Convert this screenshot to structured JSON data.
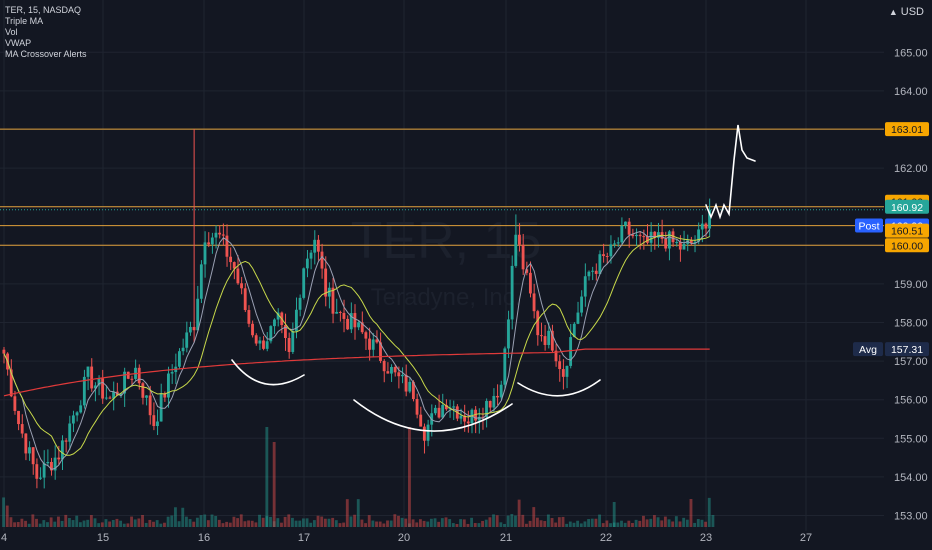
{
  "header": {
    "symbol_line": "TER, 15, NASDAQ",
    "indicators": [
      "Triple MA",
      "Vol",
      "VWAP",
      "MA Crossover Alerts"
    ]
  },
  "currency": {
    "label": "USD",
    "caret": "▲"
  },
  "watermark": {
    "ticker": "TER, 15",
    "name": "Teradyne, Inc."
  },
  "chart_data": {
    "type": "candlestick",
    "symbol": "TER",
    "interval": "15",
    "exchange": "NASDAQ",
    "y_axis": {
      "ticks": [
        153,
        154,
        155,
        156,
        157,
        158,
        159,
        160,
        161,
        162,
        163,
        164,
        165
      ],
      "tick_labels": [
        "153.00",
        "154.00",
        "155.00",
        "156.00",
        "157.00",
        "158.00",
        "159.00",
        "160.00",
        "161.00",
        "162.00",
        "163.00",
        "164.00",
        "165.00"
      ],
      "range": [
        152.75,
        166.2
      ]
    },
    "x_axis": {
      "labels": [
        {
          "label": "4",
          "day": 14
        },
        {
          "label": "15",
          "day": 15
        },
        {
          "label": "16",
          "day": 16
        },
        {
          "label": "17",
          "day": 17
        },
        {
          "label": "20",
          "day": 20
        },
        {
          "label": "21",
          "day": 21
        },
        {
          "label": "22",
          "day": 22
        },
        {
          "label": "23",
          "day": 23
        },
        {
          "label": "27",
          "day": 27
        }
      ]
    },
    "price_tags": [
      {
        "label": "163.01",
        "value": 163.01,
        "kind": "level"
      },
      {
        "label": "161.00",
        "value": 161.0,
        "kind": "level"
      },
      {
        "label": "160.92",
        "value": 160.92,
        "kind": "last"
      },
      {
        "label": "160.90",
        "value": 160.9,
        "kind": "post",
        "prefix": "Post"
      },
      {
        "label": "160.51",
        "value": 160.51,
        "kind": "level"
      },
      {
        "label": "160.00",
        "value": 160.0,
        "kind": "level"
      },
      {
        "label": "157.31",
        "value": 157.31,
        "kind": "avg",
        "prefix": "Avg"
      }
    ],
    "horizontal_lines": [
      163.01,
      161.0,
      160.51,
      160.0
    ],
    "anchors": [
      {
        "t": 0,
        "p": 157.2
      },
      {
        "t": 4,
        "p": 155.4
      },
      {
        "t": 9,
        "p": 154.0
      },
      {
        "t": 15,
        "p": 154.6
      },
      {
        "t": 23,
        "p": 156.6
      },
      {
        "t": 29,
        "p": 156.0
      },
      {
        "t": 36,
        "p": 156.8
      },
      {
        "t": 41,
        "p": 155.4
      },
      {
        "t": 47,
        "p": 157.0
      },
      {
        "t": 52,
        "p": 158.0
      },
      {
        "t": 55,
        "p": 160.3
      },
      {
        "t": 59,
        "p": 160.2
      },
      {
        "t": 63,
        "p": 159.4
      },
      {
        "t": 67,
        "p": 158.0
      },
      {
        "t": 70,
        "p": 157.4
      },
      {
        "t": 75,
        "p": 158.0
      },
      {
        "t": 78,
        "p": 157.1
      },
      {
        "t": 82,
        "p": 159.5
      },
      {
        "t": 85,
        "p": 160.2
      },
      {
        "t": 88,
        "p": 158.8
      },
      {
        "t": 92,
        "p": 158.2
      },
      {
        "t": 96,
        "p": 157.9
      },
      {
        "t": 101,
        "p": 157.4
      },
      {
        "t": 107,
        "p": 156.6
      },
      {
        "t": 112,
        "p": 156.2
      },
      {
        "t": 115,
        "p": 155.2
      },
      {
        "t": 121,
        "p": 156.0
      },
      {
        "t": 127,
        "p": 155.5
      },
      {
        "t": 132,
        "p": 155.9
      },
      {
        "t": 136,
        "p": 156.4
      },
      {
        "t": 140,
        "p": 160.3
      },
      {
        "t": 146,
        "p": 157.8
      },
      {
        "t": 150,
        "p": 157.5
      },
      {
        "t": 153,
        "p": 156.7
      },
      {
        "t": 156,
        "p": 158.0
      },
      {
        "t": 160,
        "p": 159.3
      },
      {
        "t": 166,
        "p": 159.8
      },
      {
        "t": 170,
        "p": 160.4
      },
      {
        "t": 175,
        "p": 160.0
      },
      {
        "t": 180,
        "p": 160.2
      },
      {
        "t": 186,
        "p": 159.9
      },
      {
        "t": 190,
        "p": 160.2
      },
      {
        "t": 193,
        "p": 160.92
      }
    ],
    "drawn_projection": "up to 163.01",
    "drawn_pattern": "inverse head and shoulders",
    "legend_position": "top-left",
    "grid": true
  },
  "colors": {
    "background": "#131722",
    "grid": "#1f2430",
    "up": "#26a69a",
    "down": "#ef5350",
    "level_line": "#e0a03a",
    "level_tag": "#f7a600",
    "last_tag": "#26a69a",
    "post_tag": "#2962ff",
    "avg_tag": "#1e2b4a",
    "vwap": "#e03a3a",
    "ma_fast": "#9aa0b3",
    "ma_slow": "#c7d84a",
    "drawing": "#ffffff"
  }
}
